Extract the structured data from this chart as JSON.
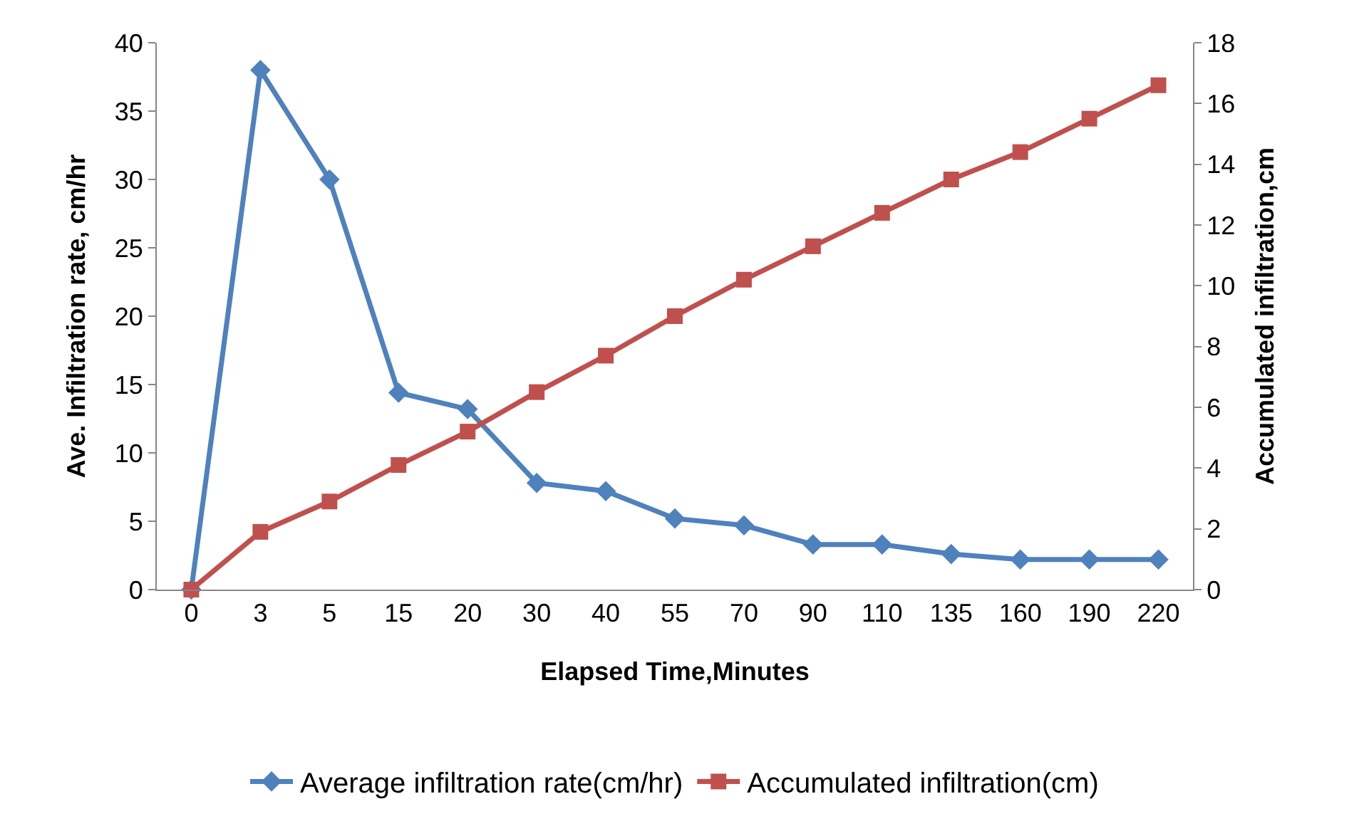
{
  "chart_data": {
    "type": "line",
    "xlabel": "Elapsed Time,Minutes",
    "ylabel": "Ave. Infiltration rate, cm/hr",
    "y2label": "Accumulated infiltration,cm",
    "categories": [
      "0",
      "3",
      "5",
      "15",
      "20",
      "30",
      "40",
      "55",
      "70",
      "90",
      "110",
      "135",
      "160",
      "190",
      "220"
    ],
    "series": [
      {
        "name": "Average infiltration rate(cm/hr)",
        "color": "#4f81bd",
        "marker": "diamond",
        "values": [
          0,
          38,
          30,
          14.4,
          13.2,
          7.8,
          7.2,
          5.2,
          4.7,
          3.3,
          3.3,
          2.6,
          2.2,
          2.2,
          2.2
        ]
      },
      {
        "name": "Accumulated infiltration(cm)",
        "color": "#c0504d",
        "marker": "square",
        "axis": "y2",
        "values": [
          0,
          1.9,
          2.9,
          4.1,
          5.2,
          6.5,
          7.7,
          9.0,
          10.2,
          11.3,
          12.4,
          13.5,
          14.4,
          15.5,
          16.6
        ]
      }
    ],
    "ylim": [
      0,
      40
    ],
    "yticks": [
      0,
      5,
      10,
      15,
      20,
      25,
      30,
      35,
      40
    ],
    "y2lim": [
      0,
      18
    ],
    "y2ticks": [
      0,
      2,
      4,
      6,
      8,
      10,
      12,
      14,
      16,
      18
    ],
    "legend": "bottom",
    "line_style": "solid"
  }
}
